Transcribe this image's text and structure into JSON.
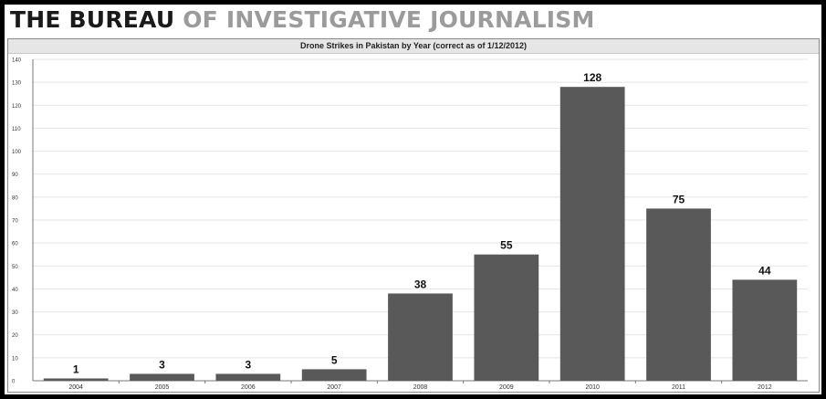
{
  "brand": {
    "strong": "THE BUREAU",
    "light": "OF INVESTIGATIVE JOURNALISM"
  },
  "colors": {
    "bar": "#595959",
    "grid": "#e4e4e4",
    "brand_light": "#9b9b9b"
  },
  "chart_data": {
    "type": "bar",
    "title": "Drone Strikes in Pakistan by Year (correct as of 1/12/2012)",
    "xlabel": "",
    "ylabel": "",
    "categories": [
      "2004",
      "2005",
      "2006",
      "2007",
      "2008",
      "2009",
      "2010",
      "2011",
      "2012"
    ],
    "values": [
      1,
      3,
      3,
      5,
      38,
      55,
      128,
      75,
      44
    ],
    "ylim": [
      0,
      140
    ],
    "yticks": [
      0,
      10,
      20,
      30,
      40,
      50,
      60,
      70,
      80,
      90,
      100,
      110,
      120,
      130,
      140
    ],
    "grid": true,
    "legend": "none",
    "data_labels": true
  }
}
